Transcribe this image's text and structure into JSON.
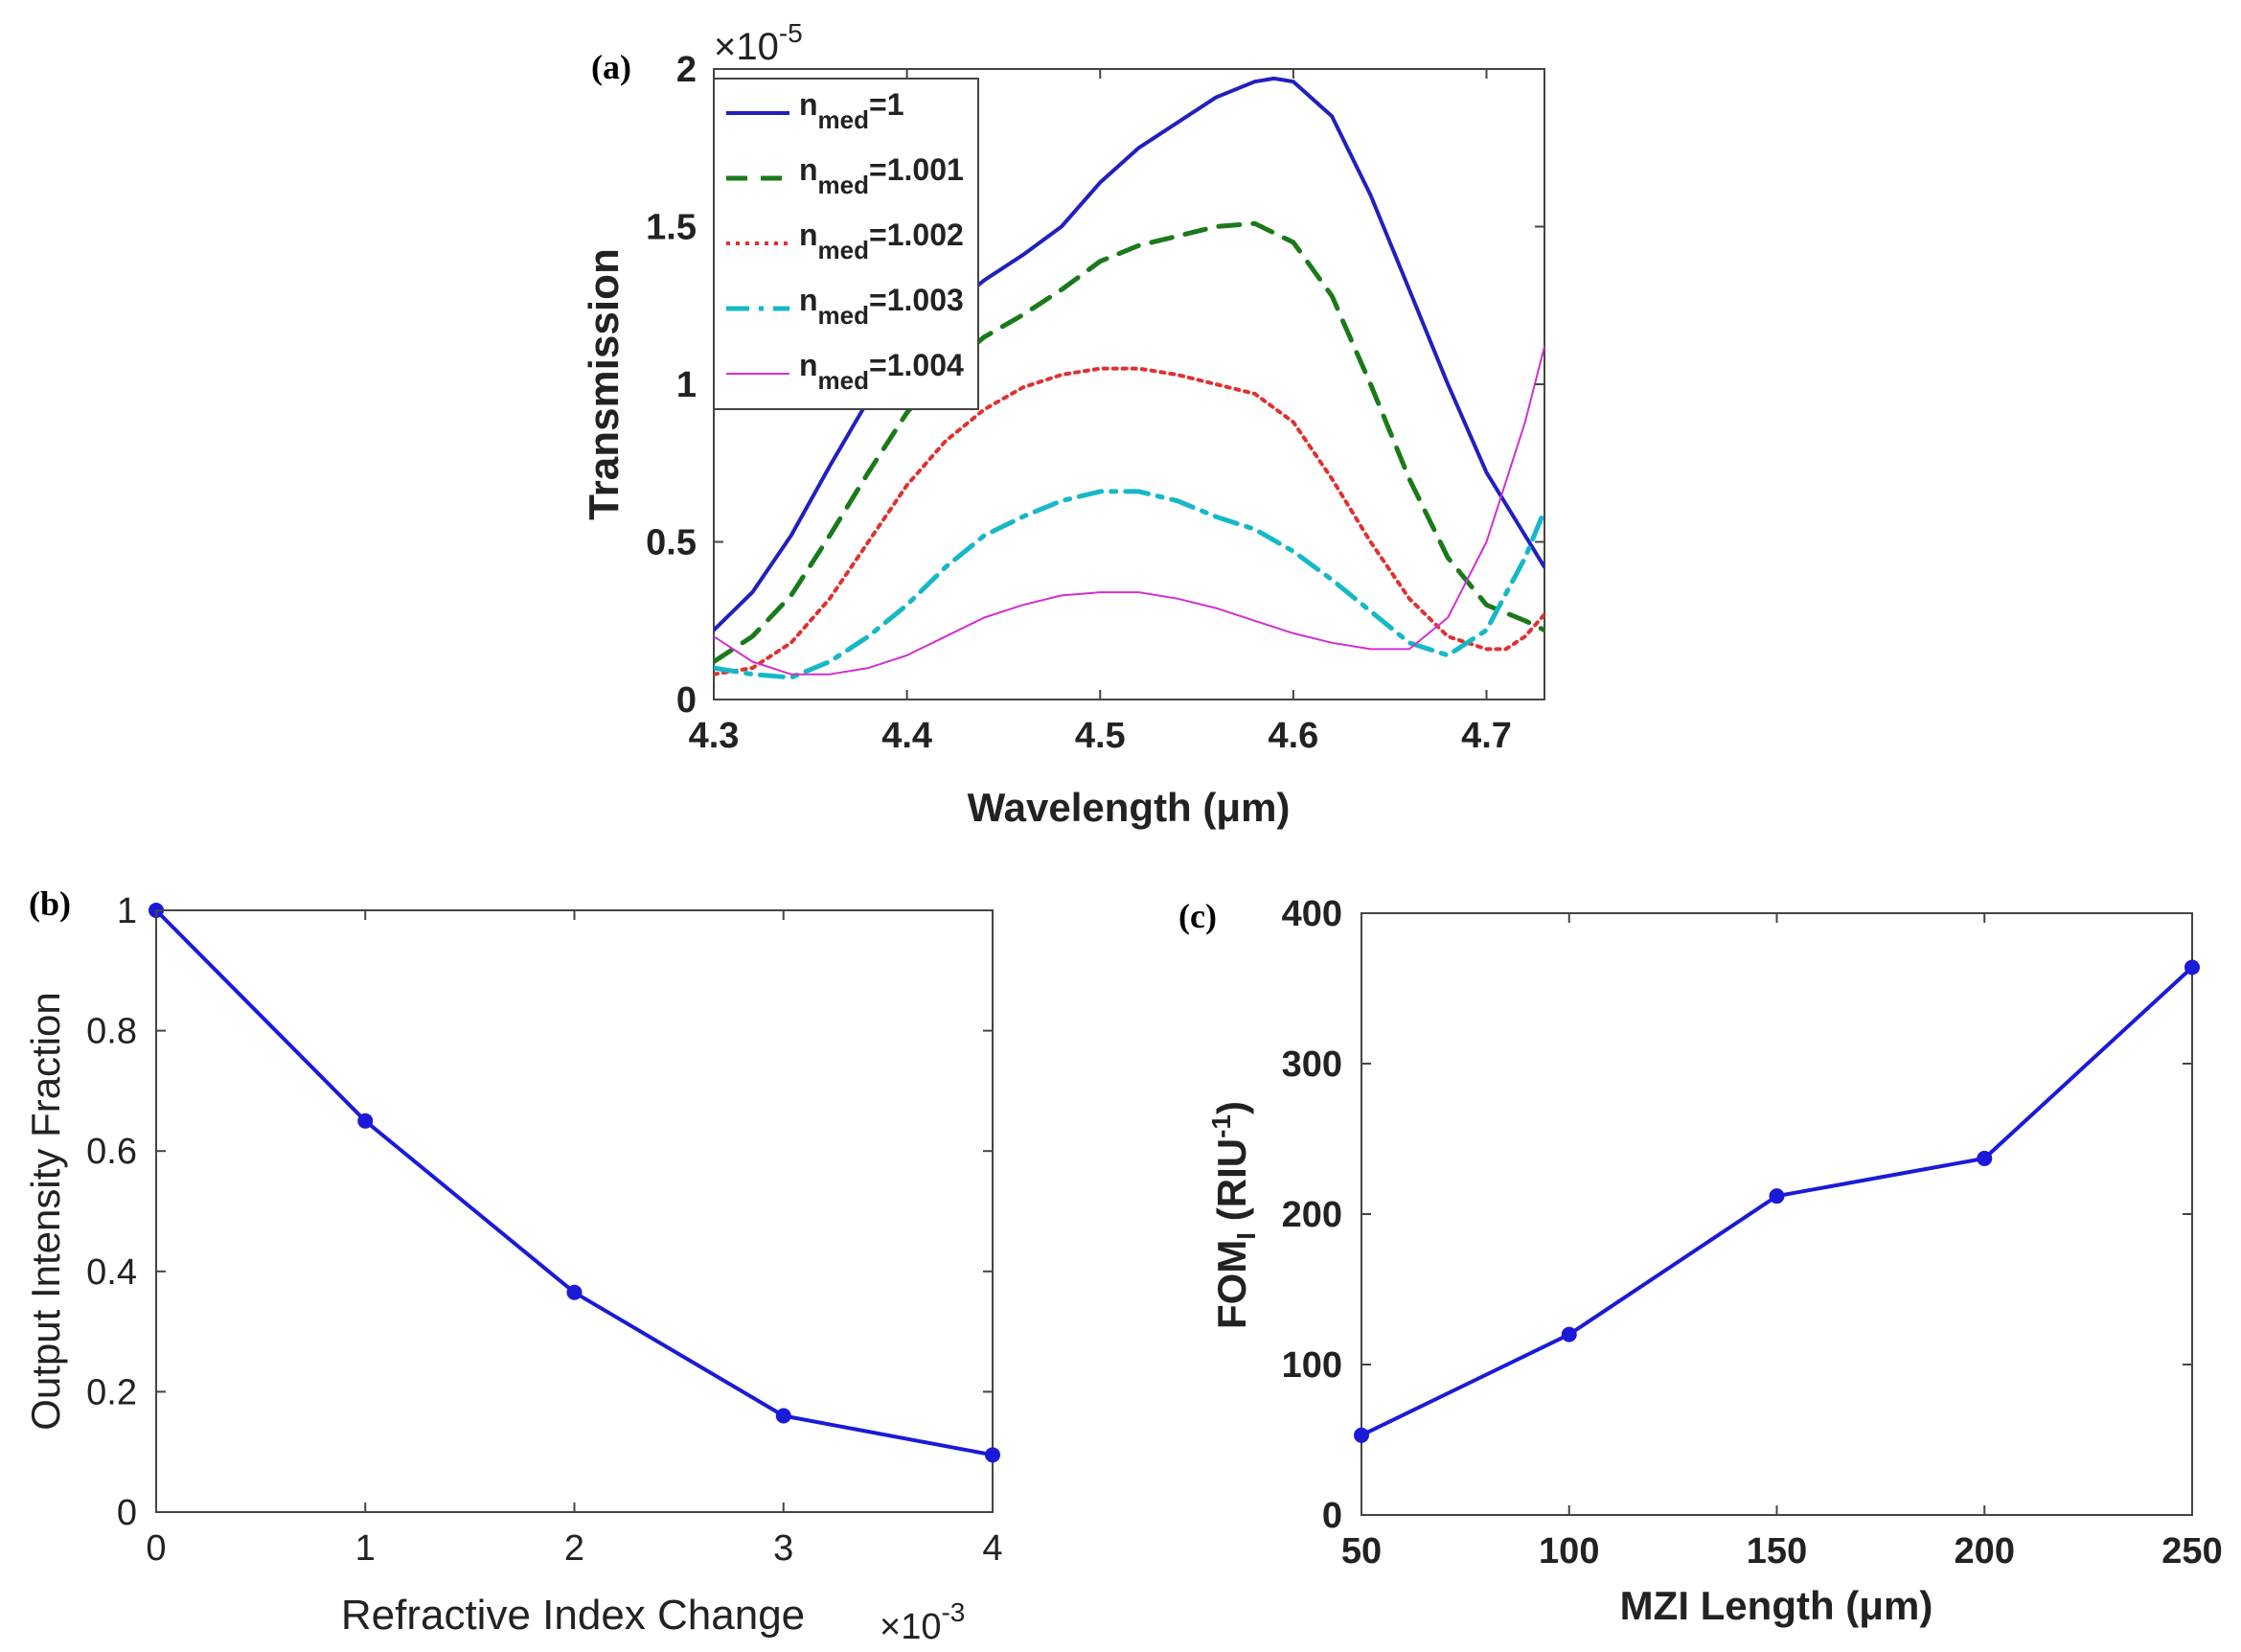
{
  "chart_data": [
    {
      "panel": "(a)",
      "type": "line",
      "xlabel": "Wavelength (μm)",
      "ylabel": "Transmission",
      "exponent": {
        "base": "×10",
        "power": "-5"
      },
      "xlim": [
        4.3,
        4.73
      ],
      "ylim": [
        0,
        2
      ],
      "xticks": [
        "4.3",
        "4.4",
        "4.5",
        "4.6",
        "4.7"
      ],
      "yticks": [
        "0",
        "0.5",
        "1",
        "1.5",
        "2"
      ],
      "series": [
        {
          "name": "n",
          "sub": "med",
          "value": "=1",
          "color": "#2020c0",
          "style": "solid",
          "x": [
            4.3,
            4.32,
            4.34,
            4.36,
            4.38,
            4.4,
            4.42,
            4.44,
            4.46,
            4.48,
            4.5,
            4.52,
            4.54,
            4.56,
            4.58,
            4.59,
            4.6,
            4.62,
            4.64,
            4.66,
            4.68,
            4.7,
            4.73
          ],
          "y": [
            0.22,
            0.34,
            0.52,
            0.74,
            0.95,
            1.1,
            1.23,
            1.33,
            1.41,
            1.5,
            1.64,
            1.75,
            1.83,
            1.91,
            1.96,
            1.97,
            1.96,
            1.85,
            1.6,
            1.3,
            1.0,
            0.72,
            0.42
          ]
        },
        {
          "name": "n",
          "sub": "med",
          "value": "=1.001",
          "color": "#1a7a1a",
          "style": "dashed",
          "x": [
            4.3,
            4.32,
            4.34,
            4.36,
            4.38,
            4.4,
            4.42,
            4.44,
            4.46,
            4.48,
            4.5,
            4.52,
            4.54,
            4.56,
            4.58,
            4.6,
            4.62,
            4.64,
            4.66,
            4.68,
            4.7,
            4.72,
            4.73
          ],
          "y": [
            0.12,
            0.2,
            0.33,
            0.52,
            0.72,
            0.91,
            1.05,
            1.15,
            1.22,
            1.3,
            1.39,
            1.44,
            1.47,
            1.5,
            1.51,
            1.45,
            1.28,
            1.0,
            0.7,
            0.45,
            0.3,
            0.25,
            0.22
          ]
        },
        {
          "name": "n",
          "sub": "med",
          "value": "=1.002",
          "color": "#e03030",
          "style": "dotted",
          "x": [
            4.3,
            4.32,
            4.34,
            4.36,
            4.38,
            4.4,
            4.42,
            4.44,
            4.46,
            4.48,
            4.5,
            4.52,
            4.54,
            4.56,
            4.58,
            4.6,
            4.62,
            4.64,
            4.66,
            4.68,
            4.7,
            4.71,
            4.72,
            4.73
          ],
          "y": [
            0.08,
            0.1,
            0.18,
            0.32,
            0.5,
            0.68,
            0.82,
            0.92,
            0.99,
            1.03,
            1.05,
            1.05,
            1.03,
            1.0,
            0.97,
            0.88,
            0.7,
            0.5,
            0.32,
            0.2,
            0.16,
            0.16,
            0.2,
            0.27
          ]
        },
        {
          "name": "n",
          "sub": "med",
          "value": "=1.003",
          "color": "#16b8c8",
          "style": "dashdot",
          "x": [
            4.3,
            4.32,
            4.34,
            4.36,
            4.38,
            4.4,
            4.42,
            4.44,
            4.46,
            4.48,
            4.5,
            4.52,
            4.54,
            4.56,
            4.58,
            4.6,
            4.62,
            4.64,
            4.66,
            4.68,
            4.7,
            4.72,
            4.73
          ],
          "y": [
            0.1,
            0.08,
            0.07,
            0.12,
            0.2,
            0.3,
            0.42,
            0.52,
            0.58,
            0.63,
            0.66,
            0.66,
            0.63,
            0.58,
            0.54,
            0.47,
            0.38,
            0.28,
            0.18,
            0.14,
            0.22,
            0.45,
            0.6
          ]
        },
        {
          "name": "n",
          "sub": "med",
          "value": "=1.004",
          "color": "#d030d0",
          "style": "thin",
          "x": [
            4.3,
            4.32,
            4.34,
            4.36,
            4.38,
            4.4,
            4.42,
            4.44,
            4.46,
            4.48,
            4.5,
            4.52,
            4.54,
            4.56,
            4.58,
            4.6,
            4.62,
            4.64,
            4.66,
            4.68,
            4.7,
            4.72,
            4.73
          ],
          "y": [
            0.2,
            0.12,
            0.08,
            0.08,
            0.1,
            0.14,
            0.2,
            0.26,
            0.3,
            0.33,
            0.34,
            0.34,
            0.32,
            0.29,
            0.25,
            0.21,
            0.18,
            0.16,
            0.16,
            0.26,
            0.5,
            0.88,
            1.12
          ]
        }
      ]
    },
    {
      "panel": "(b)",
      "type": "line",
      "xlabel": "Refractive Index Change",
      "ylabel": "Output Intensity Fraction",
      "exponent": {
        "base": "×10",
        "power": "-3"
      },
      "xlim": [
        0,
        4
      ],
      "ylim": [
        0,
        1
      ],
      "xticks": [
        "0",
        "1",
        "2",
        "3",
        "4"
      ],
      "yticks": [
        "0",
        "0.2",
        "0.4",
        "0.6",
        "0.8",
        "1"
      ],
      "series": [
        {
          "name": "Output Intensity Fraction",
          "color": "#1a1ad8",
          "x": [
            0,
            1,
            2,
            3,
            4
          ],
          "y": [
            1.0,
            0.65,
            0.365,
            0.16,
            0.095
          ]
        }
      ]
    },
    {
      "panel": "(c)",
      "type": "line",
      "xlabel": "MZI Length (μm)",
      "ylabel": {
        "main": "FOM",
        "sub": "I",
        "rest": " (RIU",
        "sup": "-1",
        "close": ")"
      },
      "xlim": [
        50,
        250
      ],
      "ylim": [
        0,
        400
      ],
      "xticks": [
        "50",
        "100",
        "150",
        "200",
        "250"
      ],
      "yticks": [
        "0",
        "100",
        "200",
        "300",
        "400"
      ],
      "series": [
        {
          "name": "FOM",
          "color": "#1a1ad8",
          "x": [
            50,
            100,
            150,
            200,
            250
          ],
          "y": [
            53,
            120,
            212,
            237,
            364
          ]
        }
      ]
    }
  ]
}
